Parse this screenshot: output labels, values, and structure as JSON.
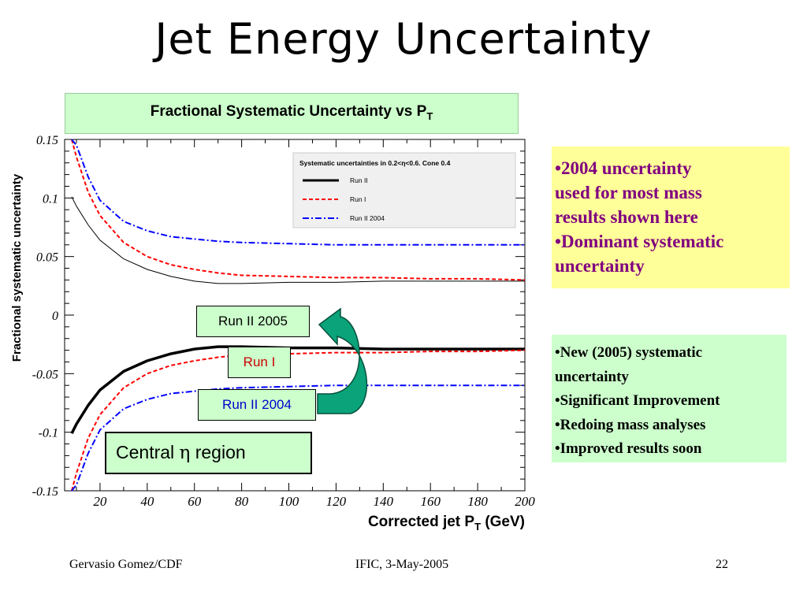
{
  "slide": {
    "title": "Jet Energy Uncertainty",
    "chart_header_main": "Fractional Systematic Uncertainty vs P",
    "chart_header_sub": "T",
    "footer_left": "Gervasio Gomez/CDF",
    "footer_center": "IFIC, 3-May-2005",
    "footer_right": "22"
  },
  "callouts": {
    "run2005": "Run II 2005",
    "run1": "Run I",
    "run2004": "Run II 2004",
    "region_prefix": "Central ",
    "region_symbol": "η",
    "region_suffix": " region"
  },
  "notes": {
    "note_2004": [
      "•2004 uncertainty",
      "used for most mass",
      "results shown here",
      "•Dominant systematic",
      "uncertainty"
    ],
    "note_2005": [
      "•New (2005) systematic",
      "uncertainty",
      "•Significant Improvement",
      "•Redoing mass analyses",
      "•Improved results soon"
    ]
  },
  "colors": {
    "run2": "#000000",
    "run1": "#ff0000",
    "run2004": "#0000ff",
    "header_bg": "#ccffcc",
    "note_2004_bg": "#ffff99",
    "note_2004_text": "#800080",
    "arrow": "#0aa37a"
  },
  "chart_data": {
    "type": "line",
    "xlabel_main": "Corrected jet P",
    "xlabel_sub": "T",
    "xlabel_unit": " (GeV)",
    "ylabel": "Fractional systematic uncertainty",
    "xlim": [
      5,
      200
    ],
    "ylim": [
      -0.15,
      0.15
    ],
    "xticks": [
      20,
      40,
      60,
      80,
      100,
      120,
      140,
      160,
      180,
      200
    ],
    "xtick_labels": [
      "20",
      "40",
      "60",
      "80",
      "100",
      "120",
      "140",
      "160",
      "180",
      "200"
    ],
    "yticks": [
      0.15,
      0.1,
      0.05,
      0,
      -0.05,
      -0.1,
      -0.15
    ],
    "ytick_labels": [
      "0.15",
      "0.1",
      "0.05",
      "0",
      "-0.05",
      "-0.1",
      "-0.15"
    ],
    "legend": {
      "title": "Systematic uncertainties in 0.2<η<0.6. Cone 0.4",
      "placement": "top-right",
      "entries": [
        "Run II",
        "Run I",
        "Run II 2004"
      ]
    },
    "x": [
      8,
      10,
      15,
      20,
      30,
      40,
      50,
      60,
      70,
      80,
      100,
      120,
      140,
      160,
      180,
      200
    ],
    "series": [
      {
        "name": "Run II",
        "style": "solid-thin",
        "values": [
          0.101,
          0.093,
          0.077,
          0.064,
          0.048,
          0.039,
          0.033,
          0.029,
          0.027,
          0.027,
          0.028,
          0.028,
          0.029,
          0.029,
          0.029,
          0.029
        ]
      },
      {
        "name": "Run II",
        "style": "solid-thick",
        "values": [
          -0.101,
          -0.093,
          -0.077,
          -0.064,
          -0.048,
          -0.039,
          -0.033,
          -0.029,
          -0.027,
          -0.027,
          -0.028,
          -0.028,
          -0.029,
          -0.029,
          -0.029,
          -0.029
        ]
      },
      {
        "name": "Run I",
        "style": "dashed",
        "values": [
          0.15,
          0.135,
          0.105,
          0.085,
          0.062,
          0.05,
          0.043,
          0.039,
          0.036,
          0.034,
          0.033,
          0.032,
          0.032,
          0.031,
          0.031,
          0.03
        ]
      },
      {
        "name": "Run I",
        "style": "dashed",
        "values": [
          -0.15,
          -0.135,
          -0.105,
          -0.085,
          -0.062,
          -0.05,
          -0.043,
          -0.039,
          -0.036,
          -0.034,
          -0.033,
          -0.032,
          -0.032,
          -0.031,
          -0.031,
          -0.03
        ]
      },
      {
        "name": "Run II 2004",
        "style": "dashdot",
        "values": [
          0.15,
          0.145,
          0.118,
          0.098,
          0.08,
          0.072,
          0.067,
          0.065,
          0.063,
          0.062,
          0.061,
          0.06,
          0.06,
          0.06,
          0.06,
          0.06
        ]
      },
      {
        "name": "Run II 2004",
        "style": "dashdot",
        "values": [
          -0.15,
          -0.145,
          -0.118,
          -0.098,
          -0.08,
          -0.072,
          -0.067,
          -0.065,
          -0.063,
          -0.062,
          -0.061,
          -0.06,
          -0.06,
          -0.06,
          -0.06,
          -0.06
        ]
      }
    ]
  }
}
